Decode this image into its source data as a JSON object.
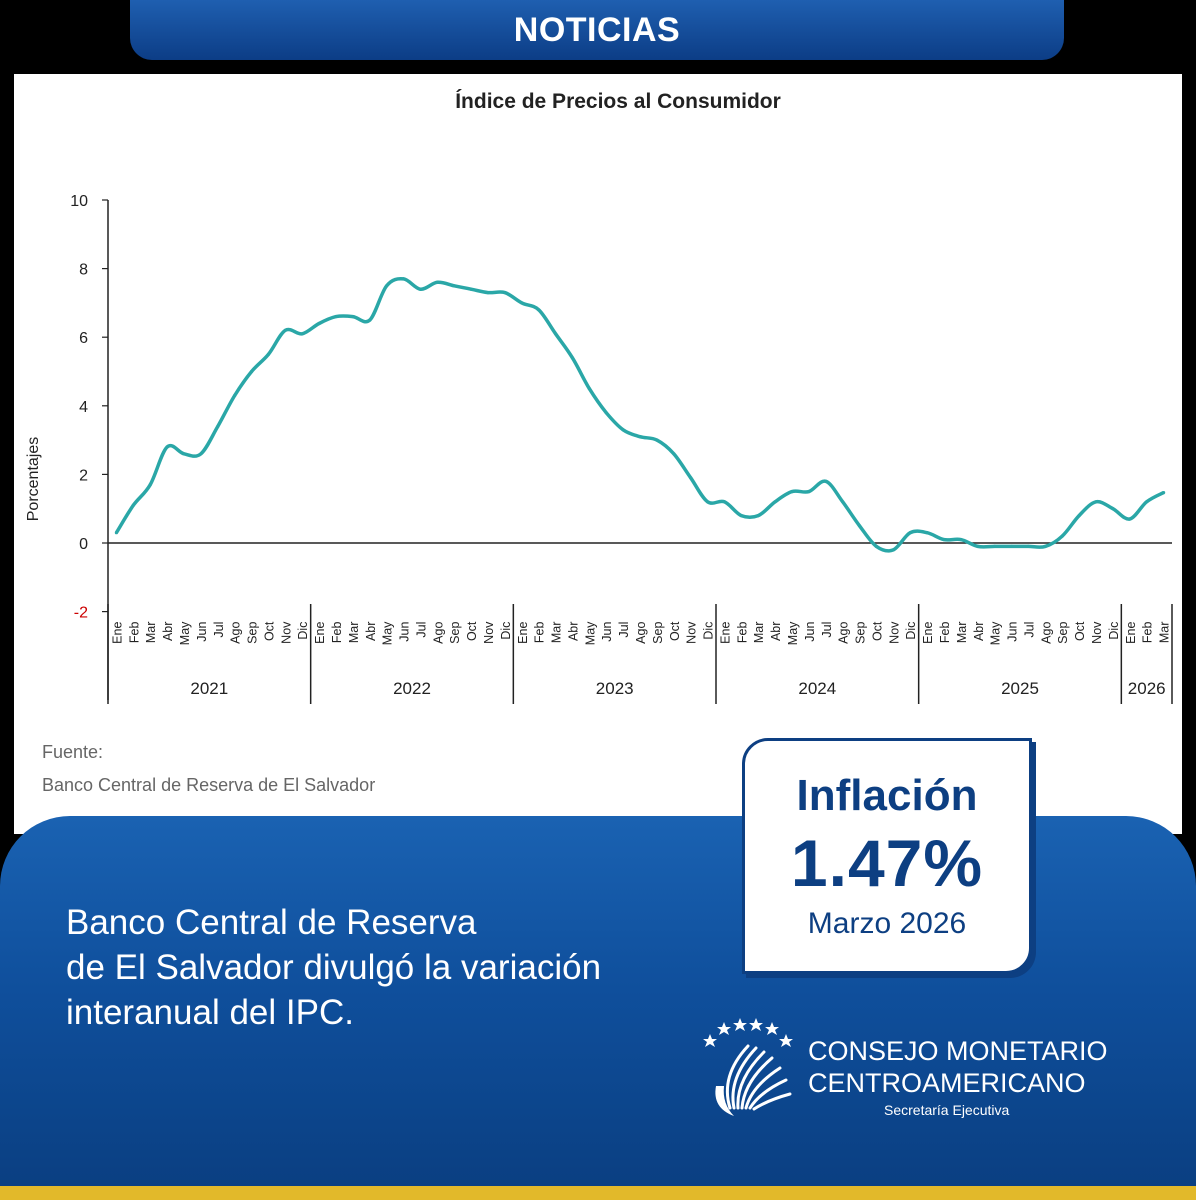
{
  "header": {
    "title": "NOTICIAS"
  },
  "chart_data": {
    "type": "line",
    "title": "Índice de Precios al Consumidor",
    "ylabel": "Porcentajes",
    "ylim": [
      -2,
      10
    ],
    "yticks": [
      "10",
      "8",
      "6",
      "4",
      "2",
      "0",
      "-2"
    ],
    "grid": false,
    "line_color": "#2aa7a7",
    "negative_tick_color": "#cc0000",
    "months": [
      "Ene",
      "Feb",
      "Mar",
      "Abr",
      "May",
      "Jun",
      "Jul",
      "Ago",
      "Sep",
      "Oct",
      "Nov",
      "Dic"
    ],
    "years": [
      "2021",
      "2022",
      "2023",
      "2024",
      "2025",
      "2026"
    ],
    "last_year_months": [
      "Ene",
      "Feb",
      "Mar"
    ],
    "series": [
      {
        "values": [
          0.3,
          1.1,
          1.7,
          2.8,
          2.6,
          2.6,
          3.4,
          4.3,
          5.0,
          5.5,
          6.2,
          6.1,
          6.4,
          6.6,
          6.6,
          6.5,
          7.5,
          7.7,
          7.4,
          7.6,
          7.5,
          7.4,
          7.3,
          7.3,
          7.0,
          6.8,
          6.1,
          5.4,
          4.5,
          3.8,
          3.3,
          3.1,
          3.0,
          2.6,
          1.9,
          1.2,
          1.2,
          0.8,
          0.8,
          1.2,
          1.5,
          1.5,
          1.8,
          1.2,
          0.5,
          -0.1,
          -0.2,
          0.3,
          0.3,
          0.1,
          0.1,
          -0.1,
          -0.1,
          -0.1,
          -0.1,
          -0.1,
          0.2,
          0.8,
          1.2,
          1.0,
          0.7,
          1.2,
          1.47
        ]
      }
    ],
    "source_label": "Fuente:",
    "source": "Banco Central de Reserva de El Salvador"
  },
  "description": {
    "lines": [
      "Banco Central de Reserva",
      "de El Salvador divulgó la variación",
      "interanual del IPC."
    ]
  },
  "inflation_card": {
    "title": "Inflación",
    "value": "1.47%",
    "date": "Marzo 2026"
  },
  "logo": {
    "line1": "CONSEJO MONETARIO",
    "line2": "CENTROAMERICANO",
    "subtitle": "Secretaría Ejecutiva"
  }
}
